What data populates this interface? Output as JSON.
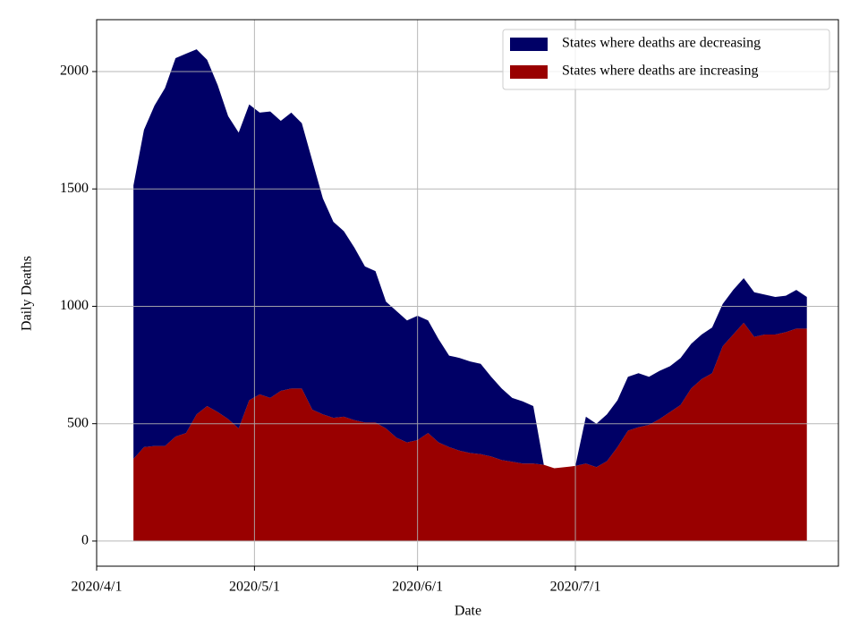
{
  "chart_data": {
    "type": "stacked_area",
    "x_label": "Date",
    "y_label": "Daily Deaths",
    "x": [
      "2020/4/8",
      "2020/4/10",
      "2020/4/12",
      "2020/4/14",
      "2020/4/16",
      "2020/4/18",
      "2020/4/20",
      "2020/4/22",
      "2020/4/24",
      "2020/4/26",
      "2020/4/28",
      "2020/4/30",
      "2020/5/2",
      "2020/5/4",
      "2020/5/6",
      "2020/5/8",
      "2020/5/10",
      "2020/5/12",
      "2020/5/14",
      "2020/5/16",
      "2020/5/18",
      "2020/5/20",
      "2020/5/22",
      "2020/5/24",
      "2020/5/26",
      "2020/5/28",
      "2020/5/30",
      "2020/6/1",
      "2020/6/3",
      "2020/6/5",
      "2020/6/7",
      "2020/6/9",
      "2020/6/11",
      "2020/6/13",
      "2020/6/15",
      "2020/6/17",
      "2020/6/19",
      "2020/6/21",
      "2020/6/23",
      "2020/6/25",
      "2020/6/27",
      "2020/6/29",
      "2020/7/1",
      "2020/7/3",
      "2020/7/5",
      "2020/7/7",
      "2020/7/9",
      "2020/7/11",
      "2020/7/13",
      "2020/7/15",
      "2020/7/17",
      "2020/7/19",
      "2020/7/21",
      "2020/7/23",
      "2020/7/25",
      "2020/7/27",
      "2020/7/29",
      "2020/7/31",
      "2020/8/2",
      "2020/8/4",
      "2020/8/6",
      "2020/8/8",
      "2020/8/10",
      "2020/8/12",
      "2020/8/14"
    ],
    "series": [
      {
        "name": "States where deaths are increasing",
        "color": "#990000",
        "values": [
          350,
          400,
          405,
          405,
          445,
          460,
          540,
          575,
          550,
          520,
          480,
          600,
          625,
          610,
          640,
          650,
          650,
          560,
          540,
          525,
          530,
          515,
          505,
          505,
          480,
          440,
          420,
          430,
          460,
          420,
          400,
          385,
          375,
          370,
          360,
          345,
          338,
          330,
          330,
          325,
          310,
          315,
          320,
          330,
          315,
          340,
          400,
          470,
          485,
          495,
          520,
          550,
          580,
          650,
          690,
          715,
          830,
          880,
          930,
          870,
          880,
          880,
          890,
          905,
          905
        ]
      },
      {
        "name": "States where deaths are decreasing",
        "color": "#000066",
        "values": [
          1165,
          1352,
          1450,
          1525,
          1612,
          1616,
          1555,
          1475,
          1393,
          1290,
          1260,
          1260,
          1200,
          1220,
          1150,
          1175,
          1130,
          1060,
          920,
          835,
          790,
          735,
          665,
          645,
          540,
          540,
          520,
          530,
          480,
          440,
          390,
          395,
          390,
          385,
          340,
          305,
          272,
          265,
          245,
          0,
          0,
          0,
          0,
          200,
          185,
          200,
          200,
          230,
          230,
          205,
          205,
          195,
          200,
          190,
          190,
          195,
          180,
          190,
          190,
          190,
          170,
          160,
          155,
          165,
          135
        ]
      }
    ],
    "xlim": [
      "2020/4/1",
      "2020/8/20"
    ],
    "xticks": [
      "2020/4/1",
      "2020/5/1",
      "2020/6/1",
      "2020/7/1"
    ],
    "ylim": [
      -107,
      2221
    ],
    "yticks": [
      0,
      500,
      1000,
      1500,
      2000
    ],
    "grid": true,
    "legend": "upper right"
  }
}
